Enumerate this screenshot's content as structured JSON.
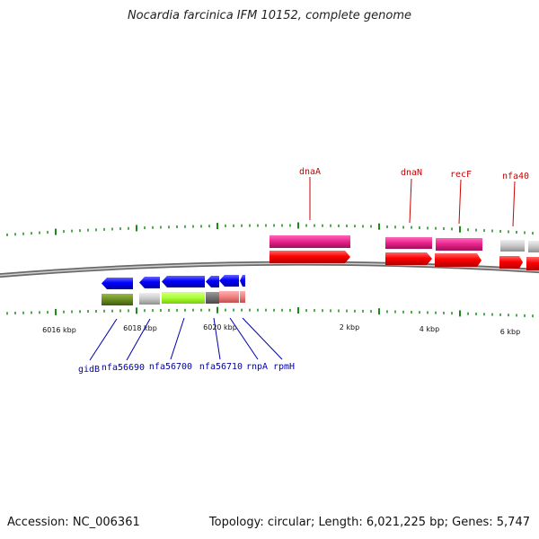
{
  "title": "Nocardia farcinica IFM 10152, complete genome",
  "footer": {
    "accession": "Accession: NC_006361",
    "summary": "Topology: circular; Length: 6,021,225 bp; Genes: 5,747"
  },
  "colors": {
    "backbone": "#8a8a8a",
    "tick": "#1a8a1a",
    "forward_label": "#cc0000",
    "reverse_label": "#0000aa",
    "gene_forward": "#ff0000",
    "gene_reverse": "#0000ff",
    "feature_magenta": "#e8228a",
    "feature_gray": "#c8c8c8",
    "feature_olive": "#6b8e23",
    "feature_lime": "#aaff33",
    "feature_darkgray": "#707070",
    "feature_salmon": "#f08080"
  },
  "scale_labels": [
    "6016 kbp",
    "6018 kbp",
    "6020 kbp",
    "2 kbp",
    "4 kbp",
    "6 kbp"
  ],
  "forward_labels": [
    "dnaA",
    "dnaN",
    "recF",
    "nfa40"
  ],
  "reverse_labels": [
    "gidB",
    "nfa56690",
    "nfa56700",
    "nfa56710",
    "rnpA",
    "rpmH"
  ]
}
